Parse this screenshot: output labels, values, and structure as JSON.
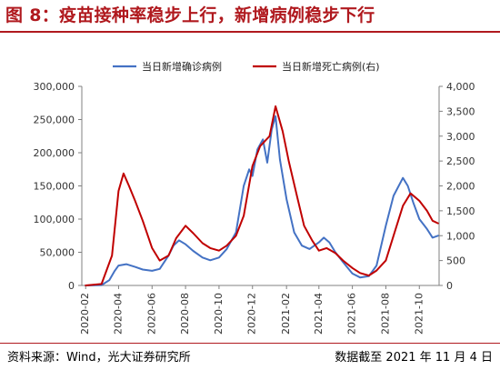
{
  "header": {
    "title": "图 8：疫苗接种率稳步上行，新增病例稳步下行"
  },
  "footer": {
    "source": "资料来源：Wind，光大证券研究所",
    "date": "数据截至 2021 年 11 月 4 日"
  },
  "chart_data": {
    "type": "line",
    "title": "",
    "xlabel": "",
    "ylabel": "",
    "ylim_left": [
      0,
      300000
    ],
    "ylim_right": [
      0,
      4000
    ],
    "y_ticks_left": [
      "0",
      "50,000",
      "100,000",
      "150,000",
      "200,000",
      "250,000",
      "300,000"
    ],
    "y_ticks_right": [
      "0",
      "500",
      "1,000",
      "1,500",
      "2,000",
      "2,500",
      "3,000",
      "3,500",
      "4,000"
    ],
    "x_ticks": [
      "2020-02",
      "2020-04",
      "2020-06",
      "2020-08",
      "2020-10",
      "2020-12",
      "2021-02",
      "2021-04",
      "2021-06",
      "2021-08",
      "2021-10"
    ],
    "legend_position": "top",
    "grid": false,
    "series": [
      {
        "name": "当日新增确诊病例",
        "axis": "left",
        "color": "#4472c4",
        "points": [
          [
            "2020-02-01",
            0
          ],
          [
            "2020-03-01",
            500
          ],
          [
            "2020-03-15",
            8000
          ],
          [
            "2020-03-25",
            22000
          ],
          [
            "2020-04-01",
            30000
          ],
          [
            "2020-04-15",
            32000
          ],
          [
            "2020-05-01",
            28000
          ],
          [
            "2020-05-15",
            24000
          ],
          [
            "2020-06-01",
            22000
          ],
          [
            "2020-06-15",
            25000
          ],
          [
            "2020-07-01",
            45000
          ],
          [
            "2020-07-10",
            60000
          ],
          [
            "2020-07-20",
            68000
          ],
          [
            "2020-08-01",
            62000
          ],
          [
            "2020-08-15",
            52000
          ],
          [
            "2020-09-01",
            42000
          ],
          [
            "2020-09-15",
            38000
          ],
          [
            "2020-10-01",
            42000
          ],
          [
            "2020-10-15",
            55000
          ],
          [
            "2020-11-01",
            80000
          ],
          [
            "2020-11-15",
            150000
          ],
          [
            "2020-11-25",
            175000
          ],
          [
            "2020-12-01",
            165000
          ],
          [
            "2020-12-10",
            205000
          ],
          [
            "2020-12-20",
            220000
          ],
          [
            "2020-12-28",
            185000
          ],
          [
            "2021-01-05",
            235000
          ],
          [
            "2021-01-12",
            255000
          ],
          [
            "2021-01-20",
            190000
          ],
          [
            "2021-02-01",
            130000
          ],
          [
            "2021-02-15",
            80000
          ],
          [
            "2021-03-01",
            60000
          ],
          [
            "2021-03-15",
            55000
          ],
          [
            "2021-04-01",
            65000
          ],
          [
            "2021-04-10",
            72000
          ],
          [
            "2021-04-20",
            65000
          ],
          [
            "2021-05-01",
            50000
          ],
          [
            "2021-05-15",
            35000
          ],
          [
            "2021-06-01",
            18000
          ],
          [
            "2021-06-15",
            12000
          ],
          [
            "2021-07-01",
            14000
          ],
          [
            "2021-07-15",
            30000
          ],
          [
            "2021-08-01",
            90000
          ],
          [
            "2021-08-15",
            135000
          ],
          [
            "2021-09-01",
            162000
          ],
          [
            "2021-09-10",
            150000
          ],
          [
            "2021-09-20",
            125000
          ],
          [
            "2021-10-01",
            100000
          ],
          [
            "2021-10-15",
            85000
          ],
          [
            "2021-10-25",
            72000
          ],
          [
            "2021-11-04",
            75000
          ]
        ]
      },
      {
        "name": "当日新增死亡病例(右)",
        "axis": "right",
        "color": "#c00000",
        "points": [
          [
            "2020-02-01",
            0
          ],
          [
            "2020-03-01",
            30
          ],
          [
            "2020-03-20",
            600
          ],
          [
            "2020-04-01",
            1900
          ],
          [
            "2020-04-10",
            2250
          ],
          [
            "2020-04-20",
            2000
          ],
          [
            "2020-05-01",
            1700
          ],
          [
            "2020-05-15",
            1300
          ],
          [
            "2020-06-01",
            750
          ],
          [
            "2020-06-15",
            500
          ],
          [
            "2020-07-01",
            600
          ],
          [
            "2020-07-15",
            950
          ],
          [
            "2020-08-01",
            1200
          ],
          [
            "2020-08-15",
            1050
          ],
          [
            "2020-09-01",
            850
          ],
          [
            "2020-09-15",
            750
          ],
          [
            "2020-10-01",
            700
          ],
          [
            "2020-10-15",
            800
          ],
          [
            "2020-11-01",
            1000
          ],
          [
            "2020-11-15",
            1400
          ],
          [
            "2020-12-01",
            2400
          ],
          [
            "2020-12-15",
            2800
          ],
          [
            "2021-01-01",
            3000
          ],
          [
            "2021-01-12",
            3600
          ],
          [
            "2021-01-25",
            3100
          ],
          [
            "2021-02-05",
            2500
          ],
          [
            "2021-02-20",
            1800
          ],
          [
            "2021-03-05",
            1200
          ],
          [
            "2021-03-20",
            900
          ],
          [
            "2021-04-01",
            700
          ],
          [
            "2021-04-15",
            750
          ],
          [
            "2021-05-01",
            650
          ],
          [
            "2021-05-15",
            500
          ],
          [
            "2021-06-01",
            350
          ],
          [
            "2021-06-15",
            250
          ],
          [
            "2021-07-01",
            200
          ],
          [
            "2021-07-15",
            300
          ],
          [
            "2021-08-01",
            500
          ],
          [
            "2021-08-15",
            1000
          ],
          [
            "2021-09-01",
            1600
          ],
          [
            "2021-09-15",
            1850
          ],
          [
            "2021-10-01",
            1700
          ],
          [
            "2021-10-15",
            1500
          ],
          [
            "2021-10-25",
            1300
          ],
          [
            "2021-11-04",
            1250
          ]
        ]
      }
    ]
  }
}
